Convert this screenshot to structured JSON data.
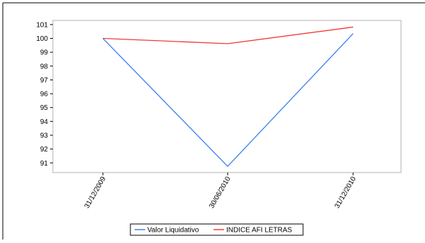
{
  "chart_data": {
    "type": "line",
    "title": "",
    "xlabel": "",
    "ylabel": "",
    "categories": [
      "31/12/2009",
      "30/06/2010",
      "31/12/2010"
    ],
    "series": [
      {
        "name": "Valor Liquidativo",
        "color": "#3a7ff0",
        "values": [
          100.0,
          90.75,
          100.35
        ]
      },
      {
        "name": "INDICE AFI LETRAS",
        "color": "#f03a3a",
        "values": [
          100.0,
          99.62,
          100.82
        ]
      }
    ],
    "yticks": [
      "91",
      "92",
      "93",
      "94",
      "95",
      "96",
      "97",
      "98",
      "99",
      "100",
      "101"
    ],
    "ylim": [
      90.3,
      101.3
    ],
    "grid": false,
    "legend": "bottom-center"
  }
}
